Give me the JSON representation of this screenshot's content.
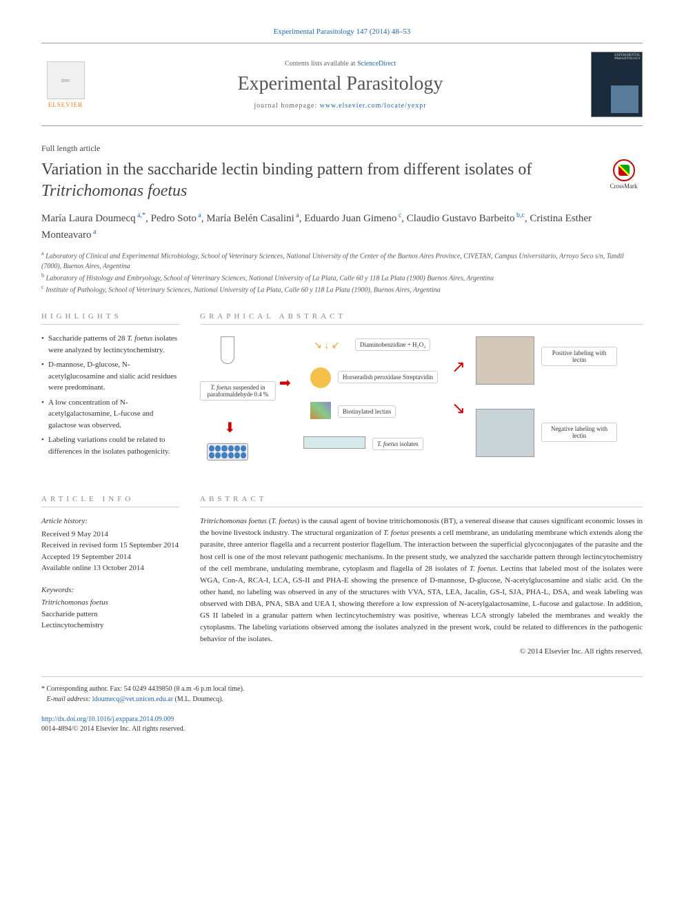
{
  "journal_ref": {
    "prefix": "",
    "name": "Experimental Parasitology",
    "vol": " 147 (2014) 48–53"
  },
  "header": {
    "contents_prefix": "Contents lists available at ",
    "contents_link": "ScienceDirect",
    "journal_name": "Experimental Parasitology",
    "homepage_prefix": "journal homepage: ",
    "homepage_link": "www.elsevier.com/locate/yexpr",
    "publisher": "ELSEVIER"
  },
  "article_type": "Full length article",
  "title_plain": "Variation in the saccharide lectin binding pattern from different isolates of ",
  "title_italic": "Tritrichomonas foetus",
  "crossmark": "CrossMark",
  "authors": [
    {
      "name": "María Laura Doumecq",
      "sup": "a,*"
    },
    {
      "name": "Pedro Soto",
      "sup": "a"
    },
    {
      "name": "María Belén Casalini",
      "sup": "a"
    },
    {
      "name": "Eduardo Juan Gimeno",
      "sup": "c"
    },
    {
      "name": "Claudio Gustavo Barbeito",
      "sup": "b,c"
    },
    {
      "name": "Cristina Esther Monteavaro",
      "sup": "a"
    }
  ],
  "affiliations": [
    {
      "sup": "a",
      "text": "Laboratory of Clinical and Experimental Microbiology, School of Veterinary Sciences, National University of the Center of the Buenos Aires Province, CIVETAN, Campus Universitario, Arroyo Seco s/n, Tandil (7000), Buenos Aires, Argentina"
    },
    {
      "sup": "b",
      "text": "Laboratory of Histology and Embryology, School of Veterinary Sciences, National University of La Plata, Calle 60 y 118 La Plata (1900) Buenos Aires, Argentina"
    },
    {
      "sup": "c",
      "text": "Institute of Pathology, School of Veterinary Sciences, National University of La Plata, Calle 60 y 118 La Plata (1900), Buenos Aires, Argentina"
    }
  ],
  "sections": {
    "highlights": "HIGHLIGHTS",
    "graphical": "GRAPHICAL ABSTRACT",
    "info": "ARTICLE INFO",
    "abstract": "ABSTRACT"
  },
  "highlights": [
    "Saccharide patterns of 28 <em>T. foetus</em> isolates were analyzed by lectincytochemistry.",
    "D-mannose, D-glucose, N-acetylglucosamine and sialic acid residues were predominant.",
    "A low concentration of N-acetylgalactosamine, L-fucose and galactose was observed.",
    "Labeling variations could be related to differences in the isolates pathogenicity."
  ],
  "graphical": {
    "tube_label": "<em>T. foetus</em> suspended in paraformaldehyde 0.4 %",
    "dab": "Diaminobenzidine + H₂O₂",
    "hrp": "Horseradish peroxidase Streptavidin",
    "biotin": "Biotinylated lectins",
    "isolates": "<em>T. foetus</em> isolates",
    "pos": "Positive labeling with lectin",
    "neg": "Negative labeling with lectin"
  },
  "article_info": {
    "history_head": "Article history:",
    "history": [
      "Received 9 May 2014",
      "Received in revised form 15 September 2014",
      "Accepted 19 September 2014",
      "Available online 13 October 2014"
    ],
    "keywords_head": "Keywords:",
    "keywords": [
      "Tritrichomonas foetus",
      "Saccharide pattern",
      "Lectincytochemistry"
    ]
  },
  "abstract": "<em>Tritrichomonas foetus</em> (<em>T. foetus</em>) is the causal agent of bovine tritrichomonosis (BT), a venereal disease that causes significant economic losses in the bovine livestock industry. The structural organization of <em>T. foetus</em> presents a cell membrane, an undulating membrane which extends along the parasite, three anterior flagella and a recurrent posterior flagellum. The interaction between the superficial glycoconjugates of the parasite and the host cell is one of the most relevant pathogenic mechanisms. In the present study, we analyzed the saccharide pattern through lectincytochemistry of the cell membrane, undulating membrane, cytoplasm and flagella of 28 isolates of <em>T. foetus</em>. Lectins that labeled most of the isolates were WGA, Con-A, RCA-I, LCA, GS-II and PHA-E showing the presence of D-mannose, D-glucose, N-acetylglucosamine and sialic acid. On the other hand, no labeling was observed in any of the structures with VVA, STA, LEA, Jacalin, GS-I, SJA, PHA-L, DSA, and weak labeling was observed with DBA, PNA, SBA and UEA I, showing therefore a low expression of N-acetylgalactosamine, L-fucose and galactose. In addition, GS II labeled in a granular pattern when lectincytochemistry was positive, whereas LCA strongly labeled the membranes and weakly the cytoplasms. The labeling variations observed among the isolates analyzed in the present work, could be related to differences in the pathogenic behavior of the isolates.",
  "copyright": "© 2014 Elsevier Inc. All rights reserved.",
  "corresponding": {
    "star": "*",
    "text": " Corresponding author. Fax: 54 0249 4439850 (8 a.m -6 p.m local time).",
    "email_label": "E-mail address: ",
    "email": "ldoumecq@vet.unicen.edu.ar",
    "email_suffix": " (M.L. Doumecq)."
  },
  "doi": {
    "link": "http://dx.doi.org/10.1016/j.exppara.2014.09.009",
    "issn": "0014-4894/© 2014 Elsevier Inc. All rights reserved."
  }
}
